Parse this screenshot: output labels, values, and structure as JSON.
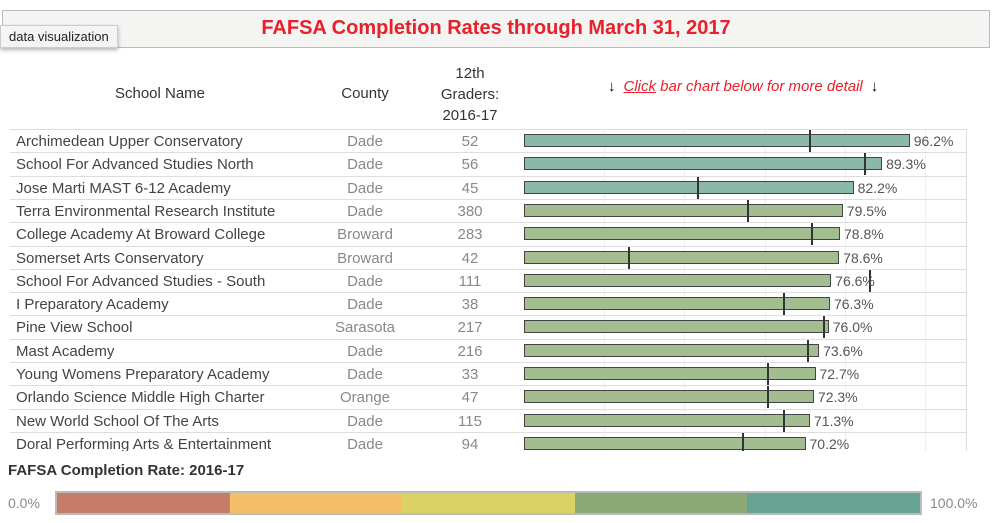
{
  "title": "FAFSA Completion Rates through March 31, 2017",
  "tooltip_tag": "data visualization",
  "headers": {
    "school": "School Name",
    "county": "County",
    "graders": [
      "12th",
      "Graders:",
      "2016-17"
    ]
  },
  "hint": {
    "pre": "Click",
    "post": " bar chart below for more detail"
  },
  "colors": {
    "teal": "#8ab9a8",
    "green": "#a3bd91",
    "title": "#e8202a"
  },
  "chart_data": {
    "type": "bar",
    "orientation": "horizontal",
    "xlim": [
      0,
      100
    ],
    "grid": true,
    "rows": [
      {
        "school": "Archimedean Upper Conservatory",
        "county": "Dade",
        "graders": "52",
        "value": 96.2,
        "label": "96.2%",
        "marker": 71.3
      },
      {
        "school": "School For Advanced Studies North",
        "county": "Dade",
        "graders": "56",
        "value": 89.3,
        "label": "89.3%",
        "marker": 85.0
      },
      {
        "school": "Jose Marti MAST 6-12 Academy",
        "county": "Dade",
        "graders": "45",
        "value": 82.2,
        "label": "82.2%",
        "marker": 43.4
      },
      {
        "school": "Terra Environmental Research Institute",
        "county": "Dade",
        "graders": "380",
        "value": 79.5,
        "label": "79.5%",
        "marker": 55.9
      },
      {
        "school": "College Academy At Broward College",
        "county": "Broward",
        "graders": "283",
        "value": 78.8,
        "label": "78.8%",
        "marker": 71.8
      },
      {
        "school": "Somerset Arts Conservatory",
        "county": "Broward",
        "graders": "42",
        "value": 78.6,
        "label": "78.6%",
        "marker": 26.2
      },
      {
        "school": "School For Advanced Studies - South",
        "county": "Dade",
        "graders": "111",
        "value": 76.6,
        "label": "76.6%",
        "marker": 86.3
      },
      {
        "school": "I Preparatory Academy",
        "county": "Dade",
        "graders": "38",
        "value": 76.3,
        "label": "76.3%",
        "marker": 64.8
      },
      {
        "school": "Pine View School",
        "county": "Sarasota",
        "graders": "217",
        "value": 76.0,
        "label": "76.0%",
        "marker": 74.8
      },
      {
        "school": "Mast Academy",
        "county": "Dade",
        "graders": "216",
        "value": 73.6,
        "label": "73.6%",
        "marker": 70.8
      },
      {
        "school": "Young Womens Preparatory Academy",
        "county": "Dade",
        "graders": "33",
        "value": 72.7,
        "label": "72.7%",
        "marker": 60.8
      },
      {
        "school": "Orlando Science Middle High Charter",
        "county": "Orange",
        "graders": "47",
        "value": 72.3,
        "label": "72.3%",
        "marker": 60.8
      },
      {
        "school": "New World School Of The Arts",
        "county": "Dade",
        "graders": "115",
        "value": 71.3,
        "label": "71.3%",
        "marker": 64.8
      },
      {
        "school": "Doral Performing Arts & Entertainment",
        "county": "Dade",
        "graders": "94",
        "value": 70.2,
        "label": "70.2%",
        "marker": 54.6
      }
    ],
    "legend": {
      "title": "FAFSA Completion Rate: 2016-17",
      "min_label": "0.0%",
      "max_label": "100.0%",
      "colors": [
        "#c97b6a",
        "#f3c069",
        "#dcd165",
        "#8aa977",
        "#66a392"
      ]
    }
  }
}
